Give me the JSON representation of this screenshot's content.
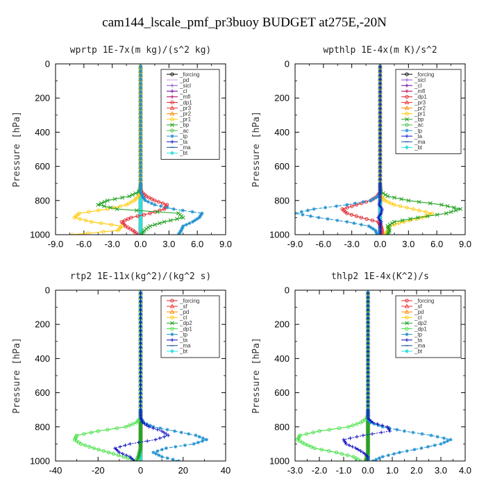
{
  "figure": {
    "title": "cam144_lscale_pmf_pr3buoy  BUDGET at275E,-20N"
  },
  "chart_data": [
    {
      "type": "line",
      "title": "wprtp  1E-7x(m kg)/(s^2 kg)",
      "ylabel": "Pressure [hPa]",
      "xlim": [
        -9,
        9
      ],
      "ylim": [
        1000,
        0
      ],
      "xticks": [
        "-9.0",
        "-6.0",
        "-3.0",
        "0.0",
        "3.0",
        "6.0",
        "9.0"
      ],
      "yticks": [
        "0",
        "200",
        "400",
        "600",
        "800",
        "1000"
      ],
      "legend_position": "top-right",
      "y": [
        1000,
        975,
        950,
        925,
        900,
        875,
        850,
        825,
        800,
        775,
        750,
        725,
        700
      ],
      "series": [
        {
          "name": "_forcing",
          "color": "#000000",
          "marker": "circle",
          "values": [
            0,
            0,
            0,
            0,
            0,
            0,
            0,
            0,
            0,
            0,
            0,
            0,
            0
          ]
        },
        {
          "name": "_pd",
          "color": "#c89ad8",
          "marker": "none",
          "values": [
            0,
            0,
            0,
            0,
            0,
            0,
            0,
            0,
            0,
            0,
            0,
            0,
            0
          ]
        },
        {
          "name": "_sicl",
          "color": "#8a4fd0",
          "marker": "plus",
          "values": [
            0,
            0,
            0,
            0,
            0,
            0,
            0,
            0,
            0,
            0,
            0,
            0,
            0
          ]
        },
        {
          "name": "_cl",
          "color": "#6a00a0",
          "marker": "plus",
          "values": [
            0,
            0,
            0,
            0,
            0,
            0,
            0,
            0,
            0,
            0,
            0,
            0,
            0
          ]
        },
        {
          "name": "_mfl",
          "color": "#b00060",
          "marker": "plus",
          "values": [
            0,
            0,
            0,
            0,
            0,
            0,
            0,
            0,
            0,
            0,
            0,
            0,
            0
          ]
        },
        {
          "name": "_dp1",
          "color": "#e0202a",
          "marker": "circle",
          "values": [
            -0.3,
            -0.8,
            -1.6,
            -2.0,
            -1.0,
            1.0,
            2.5,
            2.8,
            1.5,
            0.6,
            0.1,
            0,
            0
          ]
        },
        {
          "name": "_pr3",
          "color": "#f03030",
          "marker": "triangle",
          "values": [
            0,
            0,
            0,
            0,
            0,
            0,
            0,
            0,
            0,
            0,
            0,
            0,
            0
          ]
        },
        {
          "name": "_pr2",
          "color": "#ff8800",
          "marker": "triangle",
          "values": [
            0,
            0,
            0,
            0,
            0,
            0,
            0,
            0,
            0,
            0,
            0,
            0,
            0
          ]
        },
        {
          "name": "_pr1",
          "color": "#ffc800",
          "marker": "circle",
          "values": [
            -7.2,
            -2.4,
            -2.0,
            -5.2,
            -7.0,
            -6.5,
            -3.5,
            -1.5,
            -0.7,
            -0.2,
            0,
            0,
            0
          ]
        },
        {
          "name": "_bp",
          "color": "#20a020",
          "marker": "cross",
          "values": [
            0.1,
            0.4,
            1.0,
            2.5,
            4.5,
            4.0,
            -2.5,
            -4.5,
            -3.5,
            -1.2,
            -0.2,
            0,
            0
          ]
        },
        {
          "name": "_ac",
          "color": "#40c040",
          "marker": "circle",
          "values": [
            0,
            0,
            0,
            0,
            0,
            0,
            0,
            0,
            0,
            0,
            0,
            0,
            0
          ]
        },
        {
          "name": "_tp",
          "color": "#2090d0",
          "marker": "star",
          "values": [
            4.0,
            4.3,
            4.5,
            5.5,
            6.2,
            6.5,
            3.5,
            1.5,
            0.5,
            0.2,
            0,
            0,
            0
          ]
        },
        {
          "name": "_ta",
          "color": "#1010c0",
          "marker": "plus",
          "values": [
            0,
            0,
            0,
            0,
            0,
            0,
            0,
            0,
            0,
            0,
            0,
            0,
            0
          ]
        },
        {
          "name": "_ma",
          "color": "#1050a0",
          "marker": "dash",
          "values": [
            0,
            0,
            0,
            0,
            0,
            0,
            0,
            0,
            0,
            0,
            0,
            0,
            0
          ]
        },
        {
          "name": "_bt",
          "color": "#30e0e0",
          "marker": "diamond",
          "values": [
            0,
            0,
            0,
            0,
            0,
            0,
            0,
            0,
            0,
            0,
            0,
            0,
            0
          ]
        }
      ]
    },
    {
      "type": "line",
      "title": "wpthlp  1E-4x(m K)/s^2",
      "ylabel": "Pressure [hPa]",
      "xlim": [
        -9,
        9
      ],
      "ylim": [
        1000,
        0
      ],
      "xticks": [
        "-9.0",
        "-6.0",
        "-3.0",
        "0.0",
        "3.0",
        "6.0",
        "9.0"
      ],
      "yticks": [
        "0",
        "200",
        "400",
        "600",
        "800",
        "1000"
      ],
      "legend_position": "top-right",
      "y": [
        1000,
        975,
        950,
        925,
        900,
        875,
        850,
        825,
        800,
        775,
        750,
        725,
        700
      ],
      "series": [
        {
          "name": "_forcing",
          "color": "#000000",
          "marker": "circle",
          "values": [
            0,
            0,
            0,
            0,
            0,
            0,
            0,
            0,
            0,
            0,
            0,
            0,
            0
          ]
        },
        {
          "name": "_sicl",
          "color": "#8a4fd0",
          "marker": "plus",
          "values": [
            0,
            0,
            0,
            0,
            0,
            0,
            0,
            0,
            0,
            0,
            0,
            0,
            0
          ]
        },
        {
          "name": "_cl",
          "color": "#6a00a0",
          "marker": "plus",
          "values": [
            0,
            0,
            0,
            0,
            0,
            0,
            0,
            0,
            0,
            0,
            0,
            0,
            0
          ]
        },
        {
          "name": "_mfl",
          "color": "#b00060",
          "marker": "plus",
          "values": [
            0,
            0,
            0,
            0,
            0,
            0,
            0,
            0,
            0,
            0,
            0,
            0,
            0
          ]
        },
        {
          "name": "_dp1",
          "color": "#e0202a",
          "marker": "circle",
          "values": [
            0.2,
            0.2,
            0.1,
            -0.2,
            -2.0,
            -3.5,
            -4.0,
            -2.5,
            -1.0,
            -0.3,
            0,
            0,
            0
          ]
        },
        {
          "name": "_pr3",
          "color": "#f03030",
          "marker": "triangle",
          "values": [
            0,
            0,
            0,
            0,
            0,
            0,
            0,
            0,
            0,
            0,
            0,
            0,
            0
          ]
        },
        {
          "name": "_pr2",
          "color": "#ff8800",
          "marker": "triangle",
          "values": [
            0,
            0,
            0,
            0,
            0,
            0,
            0,
            0,
            0,
            0,
            0,
            0,
            0
          ]
        },
        {
          "name": "_pr1",
          "color": "#ffc800",
          "marker": "circle",
          "values": [
            0.5,
            0.8,
            1.0,
            2.5,
            4.5,
            5.5,
            3.5,
            1.5,
            0.5,
            0.1,
            0,
            0,
            0
          ]
        },
        {
          "name": "_bp",
          "color": "#20a020",
          "marker": "cross",
          "values": [
            0.8,
            1.0,
            0.8,
            1.5,
            4.0,
            7.0,
            8.5,
            6.5,
            3.0,
            0.8,
            0.1,
            0,
            0
          ]
        },
        {
          "name": "_ac",
          "color": "#40c040",
          "marker": "circle",
          "values": [
            0,
            0,
            0,
            0,
            0,
            0,
            0,
            0,
            0,
            0,
            0,
            0,
            0
          ]
        },
        {
          "name": "_tp",
          "color": "#2090d0",
          "marker": "star",
          "values": [
            -0.3,
            -0.5,
            -1.2,
            -3.5,
            -6.5,
            -9.0,
            -7.0,
            -3.5,
            -1.0,
            -0.2,
            0,
            0,
            0
          ]
        },
        {
          "name": "_ta",
          "color": "#1010c0",
          "marker": "plus",
          "values": [
            0,
            0,
            0,
            0.1,
            -0.2,
            0.1,
            0.2,
            -0.1,
            0,
            0,
            0,
            0,
            0
          ]
        },
        {
          "name": "_ma",
          "color": "#1050a0",
          "marker": "dash",
          "values": [
            0,
            0,
            0,
            0,
            0,
            0,
            0,
            0,
            0,
            0,
            0,
            0,
            0
          ]
        },
        {
          "name": "_bt",
          "color": "#30e0e0",
          "marker": "diamond",
          "values": [
            0,
            0,
            0,
            0,
            0,
            0,
            0,
            0,
            0,
            0,
            0,
            0,
            0
          ]
        }
      ]
    },
    {
      "type": "line",
      "title": "rtp2  1E-11x(kg^2)/(kg^2 s)",
      "ylabel": "Pressure [hPa]",
      "xlim": [
        -40,
        40
      ],
      "ylim": [
        1000,
        0
      ],
      "xticks": [
        "-40",
        "-20",
        "0",
        "20",
        "40"
      ],
      "yticks": [
        "0",
        "200",
        "400",
        "600",
        "800",
        "1000"
      ],
      "legend_position": "top-right",
      "y": [
        1000,
        975,
        950,
        925,
        900,
        875,
        850,
        825,
        800,
        775,
        750,
        725,
        700
      ],
      "series": [
        {
          "name": "_forcing",
          "color": "#e0202a",
          "marker": "circle",
          "values": [
            0,
            0,
            0,
            0,
            0,
            0,
            0,
            0,
            0,
            0,
            0,
            0,
            0
          ]
        },
        {
          "name": "_sf",
          "color": "#f03030",
          "marker": "triangle",
          "values": [
            0,
            0,
            0,
            0,
            0,
            0,
            0,
            0,
            0,
            0,
            0,
            0,
            0
          ]
        },
        {
          "name": "_pd",
          "color": "#ff8800",
          "marker": "triangle",
          "values": [
            0,
            0,
            0,
            0,
            0,
            0,
            0,
            0,
            0,
            0,
            0,
            0,
            0
          ]
        },
        {
          "name": "_cl",
          "color": "#ffc800",
          "marker": "circle",
          "values": [
            0,
            0,
            0,
            0,
            0,
            0,
            0,
            0,
            0,
            0,
            0,
            0,
            0
          ]
        },
        {
          "name": "_dp2",
          "color": "#20a020",
          "marker": "cross",
          "values": [
            -2.0,
            -1.0,
            -0.5,
            0,
            0,
            0,
            0,
            0,
            0,
            0,
            0,
            0,
            0
          ]
        },
        {
          "name": "_dp1",
          "color": "#40e040",
          "marker": "circle",
          "values": [
            -2.0,
            -8.0,
            -15.0,
            -22.0,
            -28.0,
            -31.0,
            -30.0,
            -20.0,
            -7.0,
            -2.0,
            -0.2,
            0,
            0
          ]
        },
        {
          "name": "_tp",
          "color": "#2090d0",
          "marker": "star",
          "values": [
            18.0,
            10.0,
            6.0,
            12.0,
            25.0,
            31.0,
            26.0,
            16.0,
            6.0,
            1.5,
            0.2,
            0,
            0
          ]
        },
        {
          "name": "_ta",
          "color": "#1010c0",
          "marker": "plus",
          "values": [
            -3.0,
            -5.0,
            -10.0,
            -12.0,
            -5.0,
            7.0,
            13.0,
            10.0,
            4.0,
            1.0,
            0.1,
            0,
            0
          ]
        },
        {
          "name": "_ma",
          "color": "#1050a0",
          "marker": "dash",
          "values": [
            0,
            0,
            0,
            0,
            0,
            0,
            0,
            0,
            0,
            0,
            0,
            0,
            0
          ]
        },
        {
          "name": "_bt",
          "color": "#30e0e0",
          "marker": "diamond",
          "values": [
            0,
            0,
            0,
            0,
            0,
            0,
            0,
            0,
            0,
            0,
            0,
            0,
            0
          ]
        }
      ]
    },
    {
      "type": "line",
      "title": "thlp2  1E-4x(K^2)/s",
      "ylabel": "Pressure [hPa]",
      "xlim": [
        -3,
        4
      ],
      "ylim": [
        1000,
        0
      ],
      "xticks": [
        "-3.0",
        "-2.0",
        "-1.0",
        "0.0",
        "1.0",
        "2.0",
        "3.0",
        "4.0"
      ],
      "yticks": [
        "0",
        "200",
        "400",
        "600",
        "800",
        "1000"
      ],
      "legend_position": "top-right",
      "y": [
        1000,
        975,
        950,
        925,
        900,
        875,
        850,
        825,
        800,
        775,
        750,
        725,
        700
      ],
      "series": [
        {
          "name": "_forcing",
          "color": "#e0202a",
          "marker": "circle",
          "values": [
            0,
            0,
            0,
            0,
            0,
            0,
            0,
            0,
            0,
            0,
            0,
            0,
            0
          ]
        },
        {
          "name": "_sf",
          "color": "#f03030",
          "marker": "triangle",
          "values": [
            0,
            0,
            0,
            0,
            0,
            0,
            0,
            0,
            0,
            0,
            0,
            0,
            0
          ]
        },
        {
          "name": "_pd",
          "color": "#ff8800",
          "marker": "triangle",
          "values": [
            0,
            0,
            0,
            0,
            0,
            0,
            0,
            0,
            0,
            0,
            0,
            0,
            0
          ]
        },
        {
          "name": "_cl",
          "color": "#ffc800",
          "marker": "circle",
          "values": [
            0,
            0,
            0,
            0,
            0,
            0,
            0,
            0,
            0,
            0,
            0,
            0,
            0
          ]
        },
        {
          "name": "_dp2",
          "color": "#20a020",
          "marker": "cross",
          "values": [
            -0.1,
            -0.05,
            0,
            0,
            0,
            0,
            0,
            0,
            0,
            0,
            0,
            0,
            0
          ]
        },
        {
          "name": "_dp1",
          "color": "#40e040",
          "marker": "circle",
          "values": [
            -0.3,
            -0.6,
            -1.3,
            -2.2,
            -2.6,
            -2.9,
            -2.8,
            -2.0,
            -0.8,
            -0.3,
            -0.05,
            0,
            0
          ]
        },
        {
          "name": "_tp",
          "color": "#2090d0",
          "marker": "star",
          "values": [
            0.2,
            0.6,
            1.3,
            2.2,
            3.0,
            3.4,
            2.6,
            1.5,
            0.6,
            0.1,
            0,
            0,
            0
          ]
        },
        {
          "name": "_ta",
          "color": "#1010c0",
          "marker": "plus",
          "values": [
            0,
            0,
            -0.2,
            -0.5,
            -0.9,
            -1.0,
            -0.2,
            0.9,
            0.8,
            0.2,
            0,
            0,
            0
          ]
        },
        {
          "name": "_ma",
          "color": "#1050a0",
          "marker": "dash",
          "values": [
            0,
            0,
            0,
            0,
            0,
            0,
            0,
            0,
            0,
            0,
            0,
            0,
            0
          ]
        },
        {
          "name": "_bt",
          "color": "#30e0e0",
          "marker": "diamond",
          "values": [
            0,
            0,
            0,
            0,
            0,
            0,
            0,
            0,
            0,
            0,
            0,
            0,
            0
          ]
        }
      ]
    }
  ]
}
